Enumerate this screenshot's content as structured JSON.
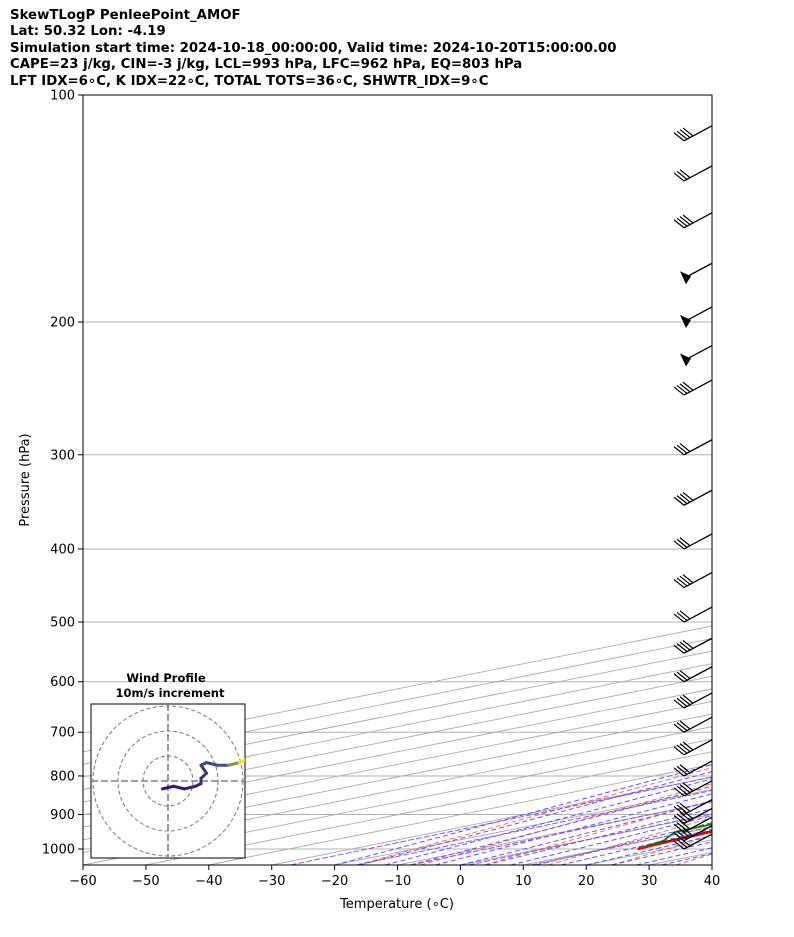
{
  "header": {
    "line1": "SkewTLogP PenleePoint_AMOF",
    "line2": "Lat: 50.32   Lon: -4.19",
    "line3": "Simulation start time: 2024-10-18_00:00:00, Valid time: 2024-10-20T15:00:00.00",
    "line4": "CAPE=23 j/kg, CIN=-3 j/kg, LCL=993 hPa, LFC=962 hPa, EQ=803 hPa",
    "line5": "LFT IDX=6∘C, K IDX=22∘C, TOTAL TOTS=36∘C, SHWTR_IDX=9∘C"
  },
  "chart_data": [
    {
      "type": "line",
      "subtype": "skew-T log-P diagram",
      "xlabel": "Temperature (∘C)",
      "ylabel": "Pressure (hPa)",
      "xlim": [
        -60,
        40
      ],
      "ylim": [
        1050,
        100
      ],
      "y_scale": "log",
      "x_ticks": [
        -60,
        -50,
        -40,
        -30,
        -20,
        -10,
        0,
        10,
        20,
        30,
        40
      ],
      "x_tick_labels": [
        "−60",
        "−50",
        "−40",
        "−30",
        "−20",
        "−10",
        "0",
        "10",
        "20",
        "30",
        "40"
      ],
      "y_ticks": [
        1000,
        900,
        800,
        700,
        600,
        500,
        400,
        300,
        200,
        100
      ],
      "y_tick_labels": [
        "1000",
        "900",
        "800",
        "700",
        "600",
        "500",
        "400",
        "300",
        "200",
        "100"
      ],
      "grid": true,
      "colors": {
        "temperature": "#ff0000",
        "dewpoint": "#008000",
        "parcel": "#000000",
        "cape_fill": "#7aaed4",
        "dry_adiabats": "#ff6666",
        "moist_adiabats": "#5555ff",
        "mixing_ratio": "#9c4fd8",
        "isotherms": "#aaaaaa"
      },
      "series": [
        {
          "role": "temperature",
          "values": [
            {
              "p": 1000,
              "t": 15.5
            },
            {
              "p": 950,
              "t": 13.5
            },
            {
              "p": 900,
              "t": 11.5
            },
            {
              "p": 850,
              "t": 11.8
            },
            {
              "p": 800,
              "t": 12.5
            },
            {
              "p": 750,
              "t": 11.0
            },
            {
              "p": 700,
              "t": 9.5
            },
            {
              "p": 650,
              "t": 7.5
            },
            {
              "p": 600,
              "t": 4.5
            },
            {
              "p": 550,
              "t": 1.0
            },
            {
              "p": 500,
              "t": -2.0
            },
            {
              "p": 475,
              "t": -3.5
            },
            {
              "p": 450,
              "t": -2.5
            },
            {
              "p": 420,
              "t": -3.0
            },
            {
              "p": 400,
              "t": -6.5
            },
            {
              "p": 350,
              "t": -13.0
            },
            {
              "p": 300,
              "t": -20.5
            },
            {
              "p": 250,
              "t": -29.5
            },
            {
              "p": 230,
              "t": -34.5
            },
            {
              "p": 200,
              "t": -40.5
            },
            {
              "p": 180,
              "t": -45.5
            },
            {
              "p": 160,
              "t": -51.5
            },
            {
              "p": 150,
              "t": -55.0
            },
            {
              "p": 140,
              "t": -55.0
            },
            {
              "p": 120,
              "t": -58.0
            },
            {
              "p": 110,
              "t": -60.0
            },
            {
              "p": 100,
              "t": -64.5
            }
          ]
        },
        {
          "role": "dewpoint",
          "values": [
            {
              "p": 1000,
              "t": 15.5
            },
            {
              "p": 975,
              "t": 13.0
            },
            {
              "p": 950,
              "t": 8.0
            },
            {
              "p": 900,
              "t": 7.0
            },
            {
              "p": 875,
              "t": 6.5
            },
            {
              "p": 850,
              "t": 4.5
            },
            {
              "p": 800,
              "t": 9.0
            },
            {
              "p": 750,
              "t": 7.5
            },
            {
              "p": 700,
              "t": 5.0
            },
            {
              "p": 650,
              "t": 3.5
            },
            {
              "p": 600,
              "t": 0.5
            },
            {
              "p": 550,
              "t": -4.0
            },
            {
              "p": 500,
              "t": -8.5
            },
            {
              "p": 480,
              "t": -9.5
            },
            {
              "p": 450,
              "t": -13.0
            },
            {
              "p": 420,
              "t": -16.0
            },
            {
              "p": 400,
              "t": -15.5
            },
            {
              "p": 360,
              "t": -15.5
            },
            {
              "p": 330,
              "t": -17.5
            },
            {
              "p": 300,
              "t": -22.5
            },
            {
              "p": 270,
              "t": -28.5
            },
            {
              "p": 240,
              "t": -35.0
            },
            {
              "p": 210,
              "t": -44.5
            },
            {
              "p": 200,
              "t": -45.0
            },
            {
              "p": 180,
              "t": -47.0
            },
            {
              "p": 165,
              "t": -50.5
            },
            {
              "p": 150,
              "t": -52.5
            },
            {
              "p": 140,
              "t": -55.0
            },
            {
              "p": 130,
              "t": -62.0
            },
            {
              "p": 120,
              "t": -63.0
            },
            {
              "p": 100,
              "t": -70.0
            }
          ]
        },
        {
          "role": "parcel",
          "values": [
            {
              "p": 1000,
              "t": 15.5
            },
            {
              "p": 993,
              "t": 15.0
            },
            {
              "p": 900,
              "t": 11.5
            },
            {
              "p": 800,
              "t": 7.8
            },
            {
              "p": 700,
              "t": 3.0
            },
            {
              "p": 600,
              "t": -3.5
            },
            {
              "p": 500,
              "t": -12.5
            },
            {
              "p": 400,
              "t": -25.5
            },
            {
              "p": 300,
              "t": -45.0
            },
            {
              "p": 250,
              "t": -58.0
            },
            {
              "p": 200,
              "t": -73.5
            },
            {
              "p": 150,
              "t": -93.0
            },
            {
              "p": 120,
              "t": -108.0
            },
            {
              "p": 100,
              "t": -120.0
            }
          ]
        }
      ],
      "wind_barbs_hpa": [
        1000,
        975,
        950,
        925,
        900,
        850,
        800,
        750,
        700,
        650,
        600,
        550,
        500,
        450,
        400,
        350,
        300,
        250,
        225,
        200,
        175,
        150,
        130,
        115
      ]
    },
    {
      "type": "line",
      "subtype": "hodograph",
      "title": "Wind Profile",
      "subtitle": "10m/s increment",
      "ring_count": 3,
      "grid": true,
      "hodograph_uv": [
        [
          -1,
          -3
        ],
        [
          1,
          -2
        ],
        [
          3,
          -3
        ],
        [
          5,
          -2
        ],
        [
          6,
          -1
        ],
        [
          6,
          1
        ],
        [
          7,
          3
        ],
        [
          6,
          6
        ],
        [
          7,
          7
        ],
        [
          9,
          6
        ],
        [
          11,
          6
        ],
        [
          13,
          7
        ],
        [
          14,
          8
        ]
      ],
      "colors": {
        "start": "#44105a",
        "end": "#ffe500"
      }
    }
  ]
}
